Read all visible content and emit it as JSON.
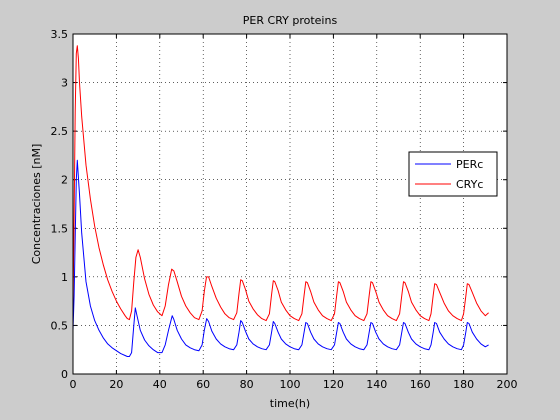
{
  "chart_data": {
    "type": "line",
    "title": "PER CRY proteins",
    "xlabel": "time(h)",
    "ylabel": "Concentraciones [nM]",
    "xlim": [
      0,
      200
    ],
    "ylim": [
      0,
      3.5
    ],
    "xticks": [
      0,
      20,
      40,
      60,
      80,
      100,
      120,
      140,
      160,
      180,
      200
    ],
    "yticks": [
      0,
      0.5,
      1,
      1.5,
      2,
      2.5,
      3,
      3.5
    ],
    "xtick_labels": [
      "0",
      "20",
      "40",
      "60",
      "80",
      "100",
      "120",
      "140",
      "160",
      "180",
      "200"
    ],
    "ytick_labels": [
      "0",
      "0.5",
      "1",
      "1.5",
      "2",
      "2.5",
      "3",
      "3.5"
    ],
    "grid": true,
    "legend_position": "right",
    "series": [
      {
        "name": "PERc",
        "color": "#0000ff",
        "x": [
          0,
          0.5,
          1,
          1.5,
          2,
          3,
          4,
          6,
          8,
          10,
          12,
          14,
          16,
          18,
          20,
          22,
          24,
          25,
          26,
          27,
          28,
          28.7,
          29.5,
          31,
          33,
          35,
          37,
          39,
          41,
          42.5,
          44,
          45.7,
          46.5,
          48,
          50,
          52,
          54,
          56,
          58,
          59.5,
          60.5,
          61.6,
          62.5,
          64,
          66,
          68,
          70,
          72,
          74,
          75.5,
          76.5,
          77.3,
          78,
          79.5,
          81,
          83,
          85,
          87,
          89,
          90.5,
          91.5,
          92.3,
          93,
          94.5,
          96,
          98,
          100,
          102,
          104,
          105.5,
          106.5,
          107.3,
          108,
          109.5,
          111,
          113,
          115,
          117,
          119,
          120.5,
          121.5,
          122.3,
          123,
          124.5,
          126,
          128,
          130,
          132,
          134,
          135.5,
          136.5,
          137.3,
          138,
          139.5,
          141,
          143,
          145,
          147,
          149,
          150.5,
          151.5,
          152.3,
          153,
          154.5,
          156,
          158,
          160,
          162,
          164,
          165,
          166,
          166.7,
          167.5,
          169,
          171,
          173,
          175,
          177,
          179,
          180,
          181,
          181.7,
          182.5,
          184,
          186,
          188,
          190,
          191.5
        ],
        "y": [
          0.45,
          0.8,
          1.4,
          2.0,
          2.2,
          1.85,
          1.45,
          0.95,
          0.7,
          0.55,
          0.45,
          0.37,
          0.31,
          0.27,
          0.24,
          0.21,
          0.19,
          0.18,
          0.18,
          0.22,
          0.5,
          0.68,
          0.6,
          0.45,
          0.35,
          0.29,
          0.25,
          0.22,
          0.22,
          0.3,
          0.45,
          0.6,
          0.56,
          0.45,
          0.36,
          0.3,
          0.27,
          0.25,
          0.24,
          0.3,
          0.45,
          0.57,
          0.54,
          0.44,
          0.36,
          0.31,
          0.28,
          0.26,
          0.25,
          0.3,
          0.43,
          0.55,
          0.53,
          0.44,
          0.36,
          0.31,
          0.28,
          0.26,
          0.25,
          0.3,
          0.43,
          0.54,
          0.52,
          0.43,
          0.36,
          0.31,
          0.28,
          0.26,
          0.25,
          0.3,
          0.43,
          0.53,
          0.52,
          0.43,
          0.36,
          0.31,
          0.28,
          0.26,
          0.25,
          0.3,
          0.43,
          0.53,
          0.52,
          0.43,
          0.36,
          0.31,
          0.28,
          0.26,
          0.25,
          0.3,
          0.43,
          0.53,
          0.52,
          0.43,
          0.36,
          0.31,
          0.28,
          0.26,
          0.25,
          0.3,
          0.43,
          0.53,
          0.52,
          0.43,
          0.36,
          0.31,
          0.28,
          0.26,
          0.25,
          0.3,
          0.43,
          0.53,
          0.52,
          0.43,
          0.36,
          0.31,
          0.28,
          0.26,
          0.25,
          0.3,
          0.43,
          0.53,
          0.52,
          0.43,
          0.36,
          0.31,
          0.28,
          0.3
        ]
      },
      {
        "name": "CRYc",
        "color": "#ff0000",
        "x": [
          0,
          0.5,
          1,
          1.5,
          2,
          2.5,
          3,
          4,
          6,
          8,
          10,
          12,
          14,
          16,
          18,
          20,
          22,
          24,
          25,
          26,
          27,
          28,
          29,
          30,
          31,
          33,
          35,
          37,
          39,
          41,
          42.5,
          44,
          45.5,
          46.5,
          48,
          50,
          52,
          54,
          56,
          58,
          59.5,
          60.5,
          61.5,
          62.5,
          64,
          66,
          68,
          70,
          72,
          74,
          75.5,
          76.5,
          77.3,
          78,
          79.5,
          81,
          83,
          85,
          87,
          89,
          90.5,
          91.5,
          92.3,
          93,
          94.5,
          96,
          98,
          100,
          102,
          104,
          105.5,
          106.5,
          107.3,
          108,
          109.5,
          111,
          113,
          115,
          117,
          119,
          120.5,
          121.5,
          122.3,
          123,
          124.5,
          126,
          128,
          130,
          132,
          134,
          135.5,
          136.5,
          137.3,
          138,
          139.5,
          141,
          143,
          145,
          147,
          149,
          150.5,
          151.5,
          152.3,
          153,
          154.5,
          156,
          158,
          160,
          162,
          164,
          165,
          166,
          166.7,
          167.5,
          169,
          171,
          173,
          175,
          177,
          179,
          180,
          181,
          181.7,
          182.5,
          184,
          186,
          188,
          190,
          191.5
        ],
        "y": [
          0.7,
          1.6,
          2.7,
          3.3,
          3.38,
          3.25,
          3.0,
          2.65,
          2.15,
          1.8,
          1.52,
          1.3,
          1.12,
          0.97,
          0.85,
          0.75,
          0.67,
          0.6,
          0.57,
          0.56,
          0.65,
          0.95,
          1.2,
          1.28,
          1.2,
          0.98,
          0.82,
          0.71,
          0.64,
          0.6,
          0.7,
          0.92,
          1.08,
          1.06,
          0.95,
          0.8,
          0.7,
          0.63,
          0.58,
          0.56,
          0.65,
          0.85,
          1.0,
          1.0,
          0.9,
          0.78,
          0.69,
          0.62,
          0.58,
          0.56,
          0.63,
          0.83,
          0.97,
          0.96,
          0.87,
          0.75,
          0.67,
          0.61,
          0.57,
          0.55,
          0.62,
          0.82,
          0.96,
          0.95,
          0.86,
          0.74,
          0.66,
          0.6,
          0.57,
          0.55,
          0.62,
          0.81,
          0.95,
          0.94,
          0.85,
          0.74,
          0.66,
          0.6,
          0.57,
          0.55,
          0.62,
          0.81,
          0.95,
          0.94,
          0.85,
          0.74,
          0.66,
          0.6,
          0.57,
          0.55,
          0.62,
          0.81,
          0.95,
          0.94,
          0.85,
          0.74,
          0.66,
          0.6,
          0.57,
          0.55,
          0.62,
          0.81,
          0.95,
          0.94,
          0.85,
          0.74,
          0.66,
          0.6,
          0.57,
          0.55,
          0.62,
          0.81,
          0.93,
          0.92,
          0.84,
          0.73,
          0.65,
          0.6,
          0.57,
          0.55,
          0.62,
          0.8,
          0.93,
          0.92,
          0.84,
          0.73,
          0.65,
          0.6,
          0.63
        ]
      }
    ]
  }
}
